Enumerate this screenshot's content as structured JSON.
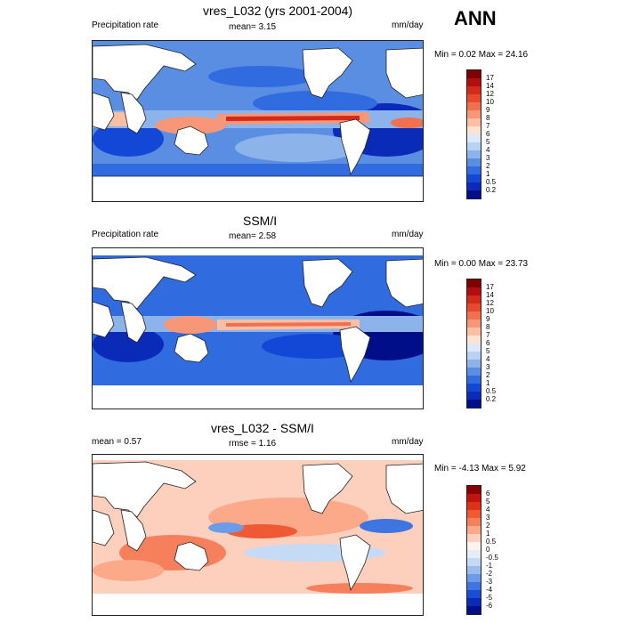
{
  "season": "ANN",
  "panels": [
    {
      "title": "vres_L032 (yrs 2001-2004)",
      "left_label": "Precipitation rate",
      "center_label": "mean=   3.15",
      "units": "mm/day",
      "minmax": "Min =   0.02 Max =  24.16",
      "colorbar": {
        "labels": [
          "17",
          "14",
          "12",
          "10",
          "9",
          "8",
          "7",
          "6",
          "5",
          "4",
          "3",
          "2",
          "1",
          "0.5",
          "0.2"
        ],
        "colors": [
          "#7f0000",
          "#b10f0f",
          "#d42a1a",
          "#e8492c",
          "#f0704f",
          "#f79778",
          "#fbbfa4",
          "#fde3d2",
          "#dce9f8",
          "#b8d2f2",
          "#8cb3ea",
          "#5a8ee3",
          "#316be0",
          "#1348d6",
          "#0a2ab8",
          "#000e8a"
        ]
      }
    },
    {
      "title": "SSM/I",
      "left_label": "Precipitation rate",
      "center_label": "mean=   2.58",
      "units": "mm/day",
      "minmax": "Min =   0.00 Max =  23.73",
      "colorbar": {
        "labels": [
          "17",
          "14",
          "12",
          "10",
          "9",
          "8",
          "7",
          "6",
          "5",
          "4",
          "3",
          "2",
          "1",
          "0.5",
          "0.2"
        ],
        "colors": [
          "#7f0000",
          "#b10f0f",
          "#d42a1a",
          "#e8492c",
          "#f0704f",
          "#f79778",
          "#fbbfa4",
          "#fde3d2",
          "#dce9f8",
          "#b8d2f2",
          "#8cb3ea",
          "#5a8ee3",
          "#316be0",
          "#1348d6",
          "#0a2ab8",
          "#000e8a"
        ]
      }
    },
    {
      "title": "vres_L032 - SSM/I",
      "left_label": "mean =   0.57",
      "center_label": "rmse =   1.16",
      "units": "mm/day",
      "minmax": "Min =  -4.13 Max =   5.92",
      "colorbar": {
        "labels": [
          "6",
          "5",
          "4",
          "3",
          "2",
          "1",
          "0.5",
          "0",
          "-0.5",
          "-1",
          "-2",
          "-3",
          "-4",
          "-5",
          "-6"
        ],
        "colors": [
          "#8a0000",
          "#c0140c",
          "#dd3118",
          "#ef5a34",
          "#f7805c",
          "#fca98a",
          "#fdd0bd",
          "#fff3ec",
          "#e4eefb",
          "#c5daf5",
          "#9bbdee",
          "#6c9ce7",
          "#3e75e0",
          "#1b4cd5",
          "#0a2ab8",
          "#000e8a"
        ]
      }
    }
  ]
}
